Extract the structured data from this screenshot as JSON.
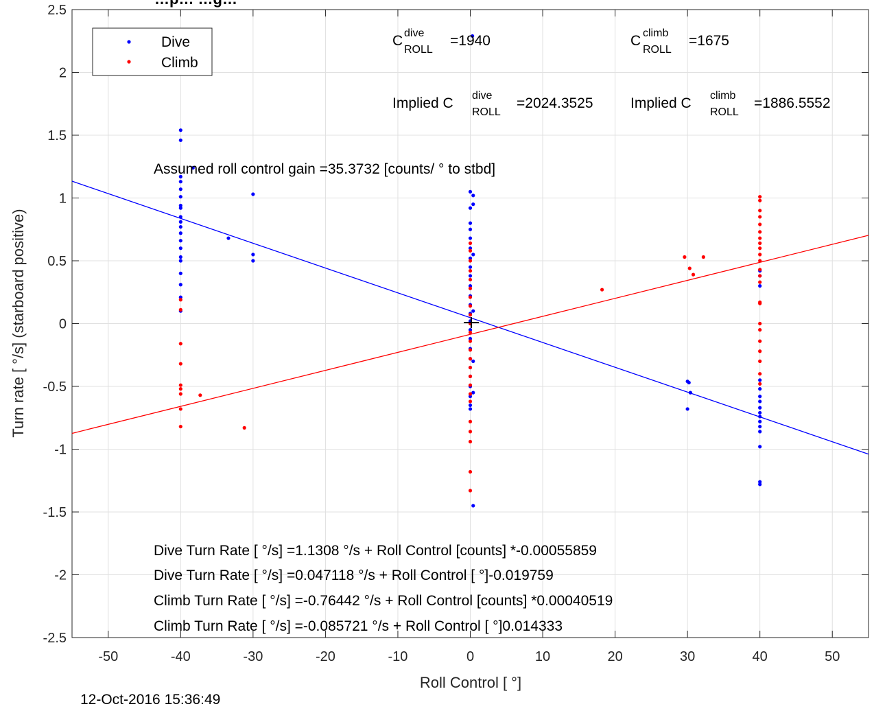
{
  "chart_data": {
    "type": "scatter",
    "title": "…p… …g…",
    "xlabel": "Roll Control [ °]",
    "ylabel": "Turn rate [ °/s] (starboard positive)",
    "xlim": [
      -55,
      55
    ],
    "ylim": [
      -2.5,
      2.5
    ],
    "xticks": [
      -50,
      -40,
      -30,
      -20,
      -10,
      0,
      10,
      20,
      30,
      40,
      50
    ],
    "yticks": [
      -2.5,
      -2,
      -1.5,
      -1,
      -0.5,
      0,
      0.5,
      1,
      1.5,
      2,
      2.5
    ],
    "xtick_labels": [
      "-50",
      "-40",
      "-30",
      "-20",
      "-10",
      "0",
      "10",
      "20",
      "30",
      "40",
      "50"
    ],
    "ytick_labels": [
      "-2.5",
      "-2",
      "-1.5",
      "-1",
      "-0.5",
      "0",
      "0.5",
      "1",
      "1.5",
      "2",
      "2.5"
    ],
    "grid": true,
    "legend_position": "top-left",
    "legend": [
      {
        "name": "Dive",
        "color": "#0000ff"
      },
      {
        "name": "Climb",
        "color": "#ff0000"
      }
    ],
    "series": [
      {
        "name": "Dive",
        "color": "#0000ff",
        "points": [
          [
            -40.0,
            1.54
          ],
          [
            -40.0,
            1.46
          ],
          [
            -40.0,
            1.17
          ],
          [
            -40.0,
            1.13
          ],
          [
            -40.0,
            1.07
          ],
          [
            -40.0,
            1.01
          ],
          [
            -40.0,
            0.94
          ],
          [
            -40.0,
            0.92
          ],
          [
            -40.0,
            0.85
          ],
          [
            -40.0,
            0.81
          ],
          [
            -40.0,
            0.77
          ],
          [
            -40.0,
            0.72
          ],
          [
            -40.0,
            0.66
          ],
          [
            -40.0,
            0.6
          ],
          [
            -40.0,
            0.53
          ],
          [
            -40.0,
            0.5
          ],
          [
            -40.0,
            0.4
          ],
          [
            -40.0,
            0.31
          ],
          [
            -40.0,
            0.21
          ],
          [
            -40.0,
            0.1
          ],
          [
            -38.3,
            1.24
          ],
          [
            -33.4,
            0.68
          ],
          [
            -30.0,
            1.03
          ],
          [
            -30.0,
            0.55
          ],
          [
            -30.0,
            0.5
          ],
          [
            0.0,
            1.05
          ],
          [
            0.0,
            0.92
          ],
          [
            0.0,
            0.8
          ],
          [
            0.0,
            0.75
          ],
          [
            0.0,
            0.68
          ],
          [
            0.0,
            0.6
          ],
          [
            0.0,
            0.52
          ],
          [
            0.0,
            0.45
          ],
          [
            0.0,
            0.38
          ],
          [
            0.0,
            0.3
          ],
          [
            0.0,
            0.22
          ],
          [
            0.0,
            0.15
          ],
          [
            0.0,
            0.08
          ],
          [
            0.0,
            0.02
          ],
          [
            0.0,
            -0.05
          ],
          [
            0.0,
            -0.12
          ],
          [
            0.0,
            -0.2
          ],
          [
            0.0,
            -0.28
          ],
          [
            0.0,
            -0.35
          ],
          [
            0.0,
            -0.42
          ],
          [
            0.0,
            -0.5
          ],
          [
            0.0,
            -0.58
          ],
          [
            0.0,
            -0.65
          ],
          [
            0.0,
            -0.68
          ],
          [
            0.4,
            1.02
          ],
          [
            0.4,
            0.95
          ],
          [
            0.4,
            0.55
          ],
          [
            0.4,
            0.1
          ],
          [
            0.4,
            -0.3
          ],
          [
            0.4,
            -0.55
          ],
          [
            0.4,
            -1.45
          ],
          [
            0.3,
            2.29
          ],
          [
            30.0,
            -0.46
          ],
          [
            30.0,
            -0.68
          ],
          [
            30.4,
            -0.55
          ],
          [
            30.2,
            -0.47
          ],
          [
            40.0,
            0.42
          ],
          [
            40.0,
            0.38
          ],
          [
            40.0,
            0.3
          ],
          [
            40.0,
            -0.45
          ],
          [
            40.0,
            -0.52
          ],
          [
            40.0,
            -0.58
          ],
          [
            40.0,
            -0.62
          ],
          [
            40.0,
            -0.67
          ],
          [
            40.0,
            -0.71
          ],
          [
            40.0,
            -0.74
          ],
          [
            40.0,
            -0.78
          ],
          [
            40.0,
            -0.82
          ],
          [
            40.0,
            -0.86
          ],
          [
            40.0,
            -0.98
          ],
          [
            40.0,
            -1.26
          ],
          [
            40.0,
            -1.28
          ]
        ]
      },
      {
        "name": "Climb",
        "color": "#ff0000",
        "points": [
          [
            -40.0,
            0.19
          ],
          [
            -40.0,
            0.11
          ],
          [
            -40.0,
            -0.16
          ],
          [
            -40.0,
            -0.32
          ],
          [
            -40.0,
            -0.49
          ],
          [
            -40.0,
            -0.52
          ],
          [
            -40.0,
            -0.56
          ],
          [
            -40.0,
            -0.68
          ],
          [
            -40.0,
            -0.82
          ],
          [
            -37.3,
            -0.57
          ],
          [
            -31.2,
            -0.83
          ],
          [
            0.0,
            0.64
          ],
          [
            0.0,
            0.58
          ],
          [
            0.0,
            0.5
          ],
          [
            0.0,
            0.42
          ],
          [
            0.0,
            0.35
          ],
          [
            0.0,
            0.28
          ],
          [
            0.0,
            0.21
          ],
          [
            0.0,
            0.14
          ],
          [
            0.0,
            0.07
          ],
          [
            0.0,
            0.0
          ],
          [
            0.0,
            -0.07
          ],
          [
            0.0,
            -0.14
          ],
          [
            0.0,
            -0.21
          ],
          [
            0.0,
            -0.28
          ],
          [
            0.0,
            -0.35
          ],
          [
            0.0,
            -0.42
          ],
          [
            0.0,
            -0.49
          ],
          [
            0.0,
            -0.56
          ],
          [
            0.0,
            -0.62
          ],
          [
            0.0,
            -0.78
          ],
          [
            0.0,
            -0.86
          ],
          [
            0.0,
            -0.94
          ],
          [
            0.0,
            -1.18
          ],
          [
            0.0,
            -1.33
          ],
          [
            18.2,
            0.27
          ],
          [
            29.6,
            0.53
          ],
          [
            30.3,
            0.44
          ],
          [
            30.8,
            0.39
          ],
          [
            32.2,
            0.53
          ],
          [
            40.0,
            1.01
          ],
          [
            40.0,
            0.98
          ],
          [
            40.0,
            0.9
          ],
          [
            40.0,
            0.85
          ],
          [
            40.0,
            0.79
          ],
          [
            40.0,
            0.73
          ],
          [
            40.0,
            0.68
          ],
          [
            40.0,
            0.64
          ],
          [
            40.0,
            0.6
          ],
          [
            40.0,
            0.55
          ],
          [
            40.0,
            0.5
          ],
          [
            40.0,
            0.43
          ],
          [
            40.0,
            0.38
          ],
          [
            40.0,
            0.33
          ],
          [
            40.0,
            0.17
          ],
          [
            40.0,
            0.16
          ],
          [
            40.0,
            0.0
          ],
          [
            40.0,
            -0.05
          ],
          [
            40.0,
            -0.14
          ],
          [
            40.0,
            -0.22
          ],
          [
            40.0,
            -0.3
          ],
          [
            40.0,
            -0.4
          ],
          [
            40.0,
            -0.48
          ]
        ]
      }
    ],
    "fit_lines": [
      {
        "name": "Dive fit",
        "color": "#0000ff",
        "intercept": 0.047118,
        "slope": -0.019759
      },
      {
        "name": "Climb fit",
        "color": "#ff0000",
        "intercept": -0.085721,
        "slope": 0.014333
      }
    ]
  },
  "annotations": {
    "c_dive_base": "C",
    "c_dive_sup": "dive",
    "c_dive_sub": "ROLL",
    "c_dive_value": "=1940",
    "c_climb_base": "C",
    "c_climb_sup": "climb",
    "c_climb_sub": "ROLL",
    "c_climb_value": "=1675",
    "implied_dive_prefix": "Implied C",
    "implied_dive_sup": "dive",
    "implied_dive_sub": "ROLL",
    "implied_dive_value": "=2024.3525",
    "implied_climb_prefix": "Implied C",
    "implied_climb_sup": "climb",
    "implied_climb_sub": "ROLL",
    "implied_climb_value": "=1886.5552",
    "gain": "Assumed roll control gain =35.3732 [counts/  ° to stbd]",
    "eq1": "Dive Turn Rate [ °/s] =1.1308 °/s + Roll Control [counts] *-0.00055859",
    "eq2": "Dive Turn Rate [ °/s] =0.047118 °/s + Roll Control [  °]-0.019759",
    "eq3": "Climb Turn Rate [ °/s] =-0.76442 °/s + Roll Control [counts] *0.00040519",
    "eq4": "Climb Turn Rate [ °/s] =-0.085721 °/s + Roll Control [  °]0.014333"
  },
  "timestamp": "12-Oct-2016 15:36:49"
}
